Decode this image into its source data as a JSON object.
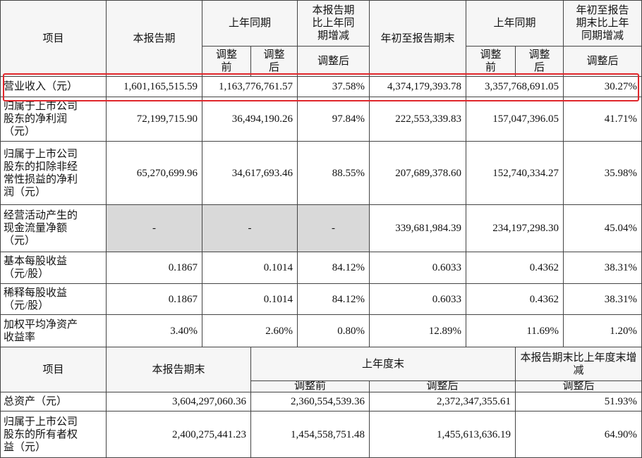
{
  "top_table": {
    "header": {
      "item": "项目",
      "current": "本报告期",
      "prior_same": "上年同期",
      "change": "本报告期比上年同期增减",
      "ytd": "年初至报告期末",
      "prior_ytd": "上年同期",
      "ytd_change": "年初至报告期末比上年同期增减",
      "prior_before": "调整前",
      "prior_after": "调整后",
      "change_after": "调整后",
      "prior_ytd_before": "调整前",
      "prior_ytd_after": "调整后",
      "ytd_change_after": "调整后"
    },
    "rows": [
      {
        "label": "营业收入（元）",
        "values": [
          "1,601,165,515.59",
          "1,163,776,761.57",
          "37.58%",
          "4,374,179,393.78",
          "3,357,768,691.05",
          "30.27%"
        ]
      },
      {
        "label": "归属于上市公司股东的净利润（元）",
        "values": [
          "72,199,715.90",
          "36,494,190.26",
          "97.84%",
          "222,553,339.83",
          "157,047,396.05",
          "41.71%"
        ]
      },
      {
        "label": "归属于上市公司股东的扣除非经常性损益的净利润（元）",
        "values": [
          "65,270,699.96",
          "34,617,693.46",
          "88.55%",
          "207,689,378.60",
          "152,740,334.27",
          "35.98%"
        ]
      },
      {
        "label": "经营活动产生的现金流量净额（元）",
        "values": [
          "-",
          "-",
          "-",
          "339,681,984.39",
          "234,197,298.30",
          "45.04%"
        ],
        "shaded": true
      },
      {
        "label": "基本每股收益（元/股）",
        "values": [
          "0.1867",
          "0.1014",
          "84.12%",
          "0.6033",
          "0.4362",
          "38.31%"
        ]
      },
      {
        "label": "稀释每股收益（元/股）",
        "values": [
          "0.1867",
          "0.1014",
          "84.12%",
          "0.6033",
          "0.4362",
          "38.31%"
        ]
      },
      {
        "label": "加权平均净资产收益率",
        "values": [
          "3.40%",
          "2.60%",
          "0.80%",
          "12.89%",
          "11.69%",
          "1.20%"
        ]
      }
    ]
  },
  "bottom_table": {
    "header": {
      "item": "项目",
      "period_end": "本报告期末",
      "prior_year_end": "上年度末",
      "change": "本报告期末比上年度末增减",
      "before": "调整前",
      "after": "调整后",
      "change_after": "调整后"
    },
    "rows": [
      {
        "label": "总资产（元）",
        "values": [
          "3,604,297,060.36",
          "2,360,554,539.36",
          "2,372,347,355.61",
          "51.93%"
        ]
      },
      {
        "label": "归属于上市公司股东的所有者权益（元）",
        "values": [
          "2,400,275,441.23",
          "1,454,558,751.48",
          "1,455,613,636.19",
          "64.90%"
        ]
      }
    ]
  }
}
